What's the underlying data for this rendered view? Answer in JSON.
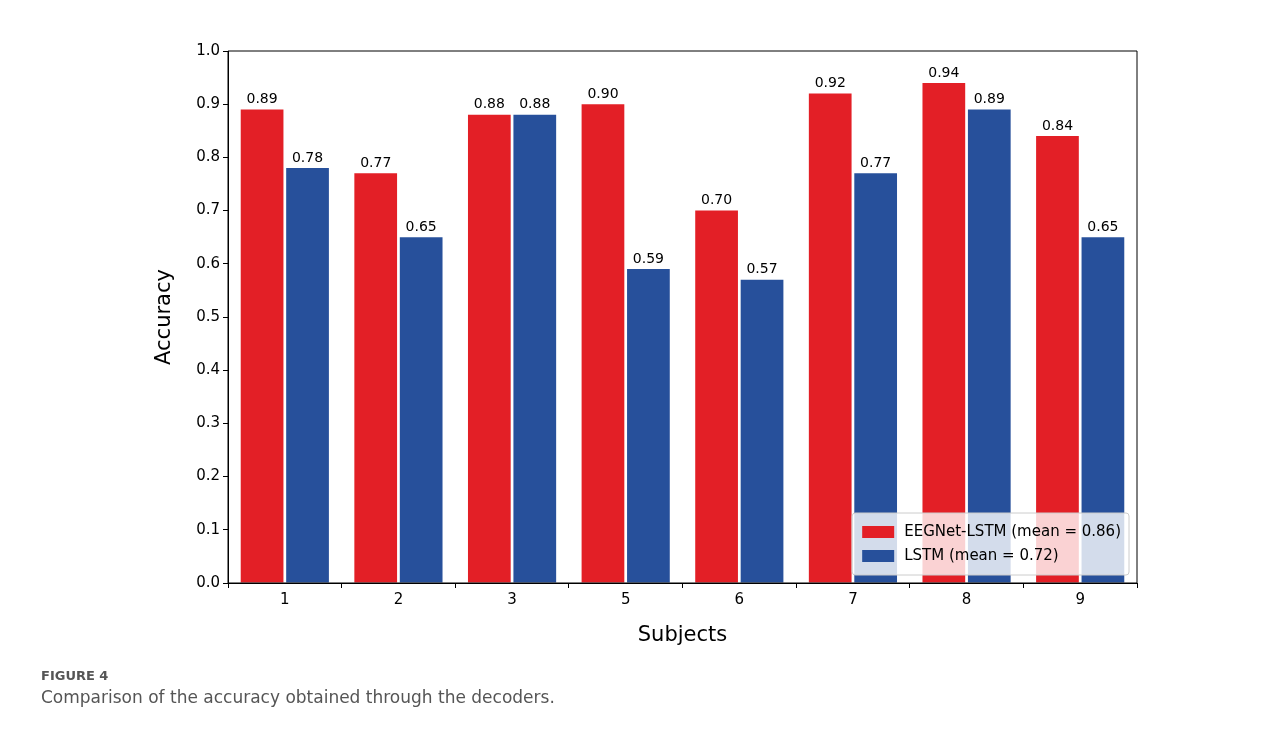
{
  "chart_data": {
    "type": "bar",
    "xlabel": "Subjects",
    "ylabel": "Accuracy",
    "categories": [
      "1",
      "2",
      "3",
      "5",
      "6",
      "7",
      "8",
      "9"
    ],
    "series": [
      {
        "name": "EEGNet-LSTM (mean = 0.86)",
        "color": "#e31f26",
        "values": [
          0.89,
          0.77,
          0.88,
          0.9,
          0.7,
          0.92,
          0.94,
          0.84
        ],
        "value_labels": [
          "0.89",
          "0.77",
          "0.88",
          "0.90",
          "0.70",
          "0.92",
          "0.94",
          "0.84"
        ]
      },
      {
        "name": "LSTM (mean = 0.72)",
        "color": "#27509b",
        "values": [
          0.78,
          0.65,
          0.88,
          0.59,
          0.57,
          0.77,
          0.89,
          0.65
        ],
        "value_labels": [
          "0.78",
          "0.65",
          "0.88",
          "0.59",
          "0.57",
          "0.77",
          "0.89",
          "0.65"
        ]
      }
    ],
    "ylim": [
      0,
      1
    ],
    "yticks": [
      {
        "value": 0,
        "label": "0.0"
      },
      {
        "value": 0.1,
        "label": "0.1"
      },
      {
        "value": 0.2,
        "label": "0.2"
      },
      {
        "value": 0.3,
        "label": "0.3"
      },
      {
        "value": 0.4,
        "label": "0.4"
      },
      {
        "value": 0.5,
        "label": "0.5"
      },
      {
        "value": 0.6,
        "label": "0.6"
      },
      {
        "value": 0.7,
        "label": "0.7"
      },
      {
        "value": 0.8,
        "label": "0.8"
      },
      {
        "value": 0.9,
        "label": "0.9"
      },
      {
        "value": 1,
        "label": "1.0"
      }
    ],
    "grid": false,
    "legend": "bottom right",
    "annotations": [
      "FIGURE 4",
      "Comparison of the accuracy obtained through the decoders."
    ]
  }
}
